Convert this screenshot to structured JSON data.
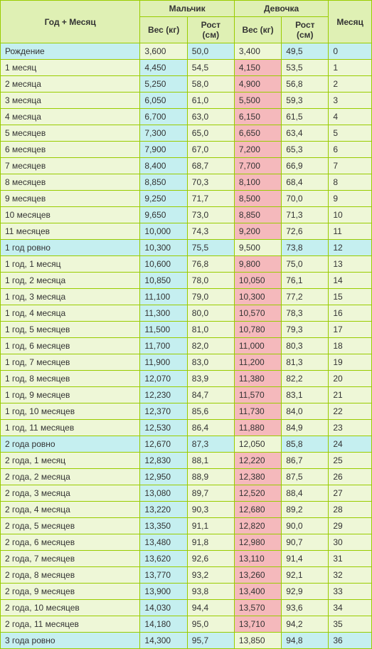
{
  "headers": {
    "period": "Год + Месяц",
    "boy": "Мальчик",
    "girl": "Девочка",
    "weight": "Вес (кг)",
    "height": "Рост (см)",
    "month": "Месяц"
  },
  "colors": {
    "background": "#dcebb6",
    "tableBorder": "#99cc00",
    "headerCell": "#dff0b4",
    "normalCell": "#eef7d7",
    "blueCell": "#c5eff0",
    "pinkCell": "#f5b9bc"
  },
  "rows": [
    {
      "period": "Рождение",
      "bw": "3,600",
      "bwHi": false,
      "bh": "50,0",
      "gw": "3,400",
      "gwHi": false,
      "gh": "49,5",
      "m": "0",
      "pHi": true
    },
    {
      "period": "1 месяц",
      "bw": "4,450",
      "bwHi": true,
      "bh": "54,5",
      "gw": "4,150",
      "gwHi": true,
      "gh": "53,5",
      "m": "1",
      "pHi": false
    },
    {
      "period": "2 месяца",
      "bw": "5,250",
      "bwHi": true,
      "bh": "58,0",
      "gw": "4,900",
      "gwHi": true,
      "gh": "56,8",
      "m": "2",
      "pHi": false
    },
    {
      "period": "3 месяца",
      "bw": "6,050",
      "bwHi": true,
      "bh": "61,0",
      "gw": "5,500",
      "gwHi": true,
      "gh": "59,3",
      "m": "3",
      "pHi": false
    },
    {
      "period": "4 месяца",
      "bw": "6,700",
      "bwHi": true,
      "bh": "63,0",
      "gw": "6,150",
      "gwHi": true,
      "gh": "61,5",
      "m": "4",
      "pHi": false
    },
    {
      "period": "5 месяцев",
      "bw": "7,300",
      "bwHi": true,
      "bh": "65,0",
      "gw": "6,650",
      "gwHi": true,
      "gh": "63,4",
      "m": "5",
      "pHi": false
    },
    {
      "period": "6 месяцев",
      "bw": "7,900",
      "bwHi": true,
      "bh": "67,0",
      "gw": "7,200",
      "gwHi": true,
      "gh": "65,3",
      "m": "6",
      "pHi": false
    },
    {
      "period": "7 месяцев",
      "bw": "8,400",
      "bwHi": true,
      "bh": "68,7",
      "gw": "7,700",
      "gwHi": true,
      "gh": "66,9",
      "m": "7",
      "pHi": false
    },
    {
      "period": "8 месяцев",
      "bw": "8,850",
      "bwHi": true,
      "bh": "70,3",
      "gw": "8,100",
      "gwHi": true,
      "gh": "68,4",
      "m": "8",
      "pHi": false
    },
    {
      "period": "9 месяцев",
      "bw": "9,250",
      "bwHi": true,
      "bh": "71,7",
      "gw": "8,500",
      "gwHi": true,
      "gh": "70,0",
      "m": "9",
      "pHi": false
    },
    {
      "period": "10 месяцев",
      "bw": "9,650",
      "bwHi": true,
      "bh": "73,0",
      "gw": "8,850",
      "gwHi": true,
      "gh": "71,3",
      "m": "10",
      "pHi": false
    },
    {
      "period": "11 месяцев",
      "bw": "10,000",
      "bwHi": true,
      "bh": "74,3",
      "gw": "9,200",
      "gwHi": true,
      "gh": "72,6",
      "m": "11",
      "pHi": false
    },
    {
      "period": "1 год ровно",
      "bw": "10,300",
      "bwHi": true,
      "bh": "75,5",
      "gw": "9,500",
      "gwHi": false,
      "gh": "73,8",
      "m": "12",
      "pHi": true
    },
    {
      "period": "1 год, 1 месяц",
      "bw": "10,600",
      "bwHi": true,
      "bh": "76,8",
      "gw": "9,800",
      "gwHi": true,
      "gh": "75,0",
      "m": "13",
      "pHi": false
    },
    {
      "period": "1 год, 2 месяца",
      "bw": "10,850",
      "bwHi": true,
      "bh": "78,0",
      "gw": "10,050",
      "gwHi": true,
      "gh": "76,1",
      "m": "14",
      "pHi": false
    },
    {
      "period": "1 год, 3 месяца",
      "bw": "11,100",
      "bwHi": true,
      "bh": "79,0",
      "gw": "10,300",
      "gwHi": true,
      "gh": "77,2",
      "m": "15",
      "pHi": false
    },
    {
      "period": "1 год, 4 месяца",
      "bw": "11,300",
      "bwHi": true,
      "bh": "80,0",
      "gw": "10,570",
      "gwHi": true,
      "gh": "78,3",
      "m": "16",
      "pHi": false
    },
    {
      "period": "1 год, 5 месяцев",
      "bw": "11,500",
      "bwHi": true,
      "bh": "81,0",
      "gw": "10,780",
      "gwHi": true,
      "gh": "79,3",
      "m": "17",
      "pHi": false
    },
    {
      "period": "1 год, 6 месяцев",
      "bw": "11,700",
      "bwHi": true,
      "bh": "82,0",
      "gw": "11,000",
      "gwHi": true,
      "gh": "80,3",
      "m": "18",
      "pHi": false
    },
    {
      "period": "1 год, 7 месяцев",
      "bw": "11,900",
      "bwHi": true,
      "bh": "83,0",
      "gw": "11,200",
      "gwHi": true,
      "gh": "81,3",
      "m": "19",
      "pHi": false
    },
    {
      "period": "1 год, 8 месяцев",
      "bw": "12,070",
      "bwHi": true,
      "bh": "83,9",
      "gw": "11,380",
      "gwHi": true,
      "gh": "82,2",
      "m": "20",
      "pHi": false
    },
    {
      "period": "1 год, 9 месяцев",
      "bw": "12,230",
      "bwHi": true,
      "bh": "84,7",
      "gw": "11,570",
      "gwHi": true,
      "gh": "83,1",
      "m": "21",
      "pHi": false
    },
    {
      "period": "1 год, 10 месяцев",
      "bw": "12,370",
      "bwHi": true,
      "bh": "85,6",
      "gw": "11,730",
      "gwHi": true,
      "gh": "84,0",
      "m": "22",
      "pHi": false
    },
    {
      "period": "1 год, 11 месяцев",
      "bw": "12,530",
      "bwHi": true,
      "bh": "86,4",
      "gw": "11,880",
      "gwHi": true,
      "gh": "84,9",
      "m": "23",
      "pHi": false
    },
    {
      "period": "2 года ровно",
      "bw": "12,670",
      "bwHi": true,
      "bh": "87,3",
      "gw": "12,050",
      "gwHi": false,
      "gh": "85,8",
      "m": "24",
      "pHi": true
    },
    {
      "period": "2 года, 1 месяц",
      "bw": "12,830",
      "bwHi": true,
      "bh": "88,1",
      "gw": "12,220",
      "gwHi": true,
      "gh": "86,7",
      "m": "25",
      "pHi": false
    },
    {
      "period": "2 года, 2 месяца",
      "bw": "12,950",
      "bwHi": true,
      "bh": "88,9",
      "gw": "12,380",
      "gwHi": true,
      "gh": "87,5",
      "m": "26",
      "pHi": false
    },
    {
      "period": "2 года, 3 месяца",
      "bw": "13,080",
      "bwHi": true,
      "bh": "89,7",
      "gw": "12,520",
      "gwHi": true,
      "gh": "88,4",
      "m": "27",
      "pHi": false
    },
    {
      "period": "2 года, 4 месяца",
      "bw": "13,220",
      "bwHi": true,
      "bh": "90,3",
      "gw": "12,680",
      "gwHi": true,
      "gh": "89,2",
      "m": "28",
      "pHi": false
    },
    {
      "period": "2 года, 5 месяцев",
      "bw": "13,350",
      "bwHi": true,
      "bh": "91,1",
      "gw": "12,820",
      "gwHi": true,
      "gh": "90,0",
      "m": "29",
      "pHi": false
    },
    {
      "period": "2 года, 6 месяцев",
      "bw": "13,480",
      "bwHi": true,
      "bh": "91,8",
      "gw": "12,980",
      "gwHi": true,
      "gh": "90,7",
      "m": "30",
      "pHi": false
    },
    {
      "period": "2 года, 7 месяцев",
      "bw": "13,620",
      "bwHi": true,
      "bh": "92,6",
      "gw": "13,110",
      "gwHi": true,
      "gh": "91,4",
      "m": "31",
      "pHi": false
    },
    {
      "period": "2 года, 8 месяцев",
      "bw": "13,770",
      "bwHi": true,
      "bh": "93,2",
      "gw": "13,260",
      "gwHi": true,
      "gh": "92,1",
      "m": "32",
      "pHi": false
    },
    {
      "period": "2 года, 9 месяцев",
      "bw": "13,900",
      "bwHi": true,
      "bh": "93,8",
      "gw": "13,400",
      "gwHi": true,
      "gh": "92,9",
      "m": "33",
      "pHi": false
    },
    {
      "period": "2 года, 10 месяцев",
      "bw": "14,030",
      "bwHi": true,
      "bh": "94,4",
      "gw": "13,570",
      "gwHi": true,
      "gh": "93,6",
      "m": "34",
      "pHi": false
    },
    {
      "period": "2 года, 11 месяцев",
      "bw": "14,180",
      "bwHi": true,
      "bh": "95,0",
      "gw": "13,710",
      "gwHi": true,
      "gh": "94,2",
      "m": "35",
      "pHi": false
    },
    {
      "period": "3 года ровно",
      "bw": "14,300",
      "bwHi": true,
      "bh": "95,7",
      "gw": "13,850",
      "gwHi": false,
      "gh": "94,8",
      "m": "36",
      "pHi": true
    }
  ]
}
